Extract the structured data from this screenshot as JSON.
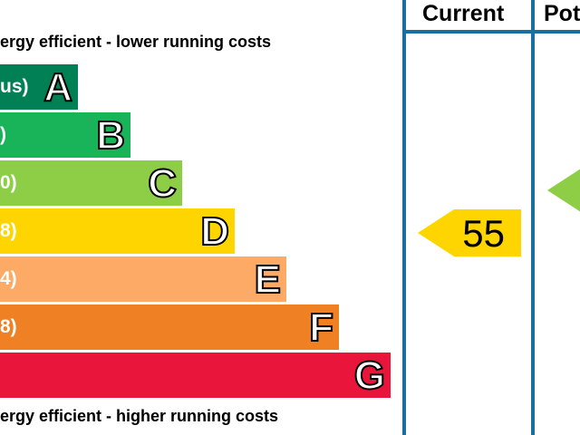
{
  "chart_data": {
    "type": "bar",
    "top_caption": "ergy efficient - lower running costs",
    "bottom_caption": "ergy efficient - higher running costs",
    "bands": [
      {
        "letter": "A",
        "range": "us)",
        "color": "#008054"
      },
      {
        "letter": "B",
        "range": ")",
        "color": "#19b459"
      },
      {
        "letter": "C",
        "range": "0)",
        "color": "#8dce46"
      },
      {
        "letter": "D",
        "range": "8)",
        "color": "#ffd500"
      },
      {
        "letter": "E",
        "range": "4)",
        "color": "#fcaa65"
      },
      {
        "letter": "F",
        "range": "8)",
        "color": "#ef8023"
      },
      {
        "letter": "G",
        "range": "",
        "color": "#e9153b"
      }
    ],
    "columns": {
      "current": "Current",
      "potential": "Pot"
    },
    "current_rating": {
      "value": "55",
      "band": "D",
      "color": "#ffd500"
    },
    "potential_rating": {
      "value": "",
      "band": "C",
      "color": "#8dce46"
    }
  }
}
